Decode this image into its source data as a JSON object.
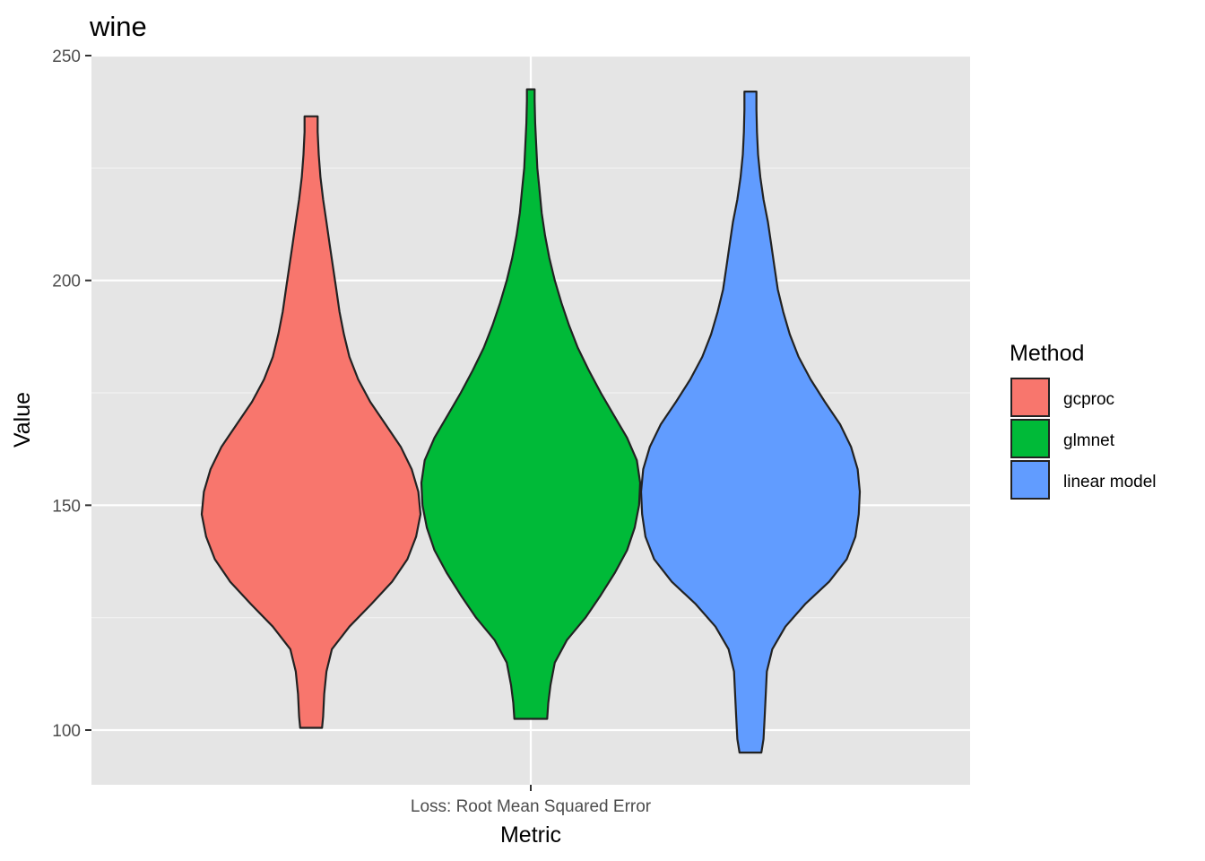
{
  "chart_data": {
    "type": "violin",
    "title": "wine",
    "xlabel": "Metric",
    "ylabel": "Value",
    "categories": [
      "Loss: Root Mean Squared Error"
    ],
    "ylim": [
      88,
      250
    ],
    "yticks": [
      100,
      150,
      200,
      250
    ],
    "grid": true,
    "legend": {
      "title": "Method",
      "position": "right"
    },
    "series": [
      {
        "name": "gcproc",
        "color": "#F8766D",
        "min": 100.5,
        "max": 236.5,
        "profile": [
          [
            100.5,
            0.1
          ],
          [
            103,
            0.11
          ],
          [
            108,
            0.12
          ],
          [
            113,
            0.14
          ],
          [
            118,
            0.19
          ],
          [
            123,
            0.35
          ],
          [
            128,
            0.55
          ],
          [
            133,
            0.74
          ],
          [
            138,
            0.88
          ],
          [
            143,
            0.96
          ],
          [
            148,
            1.0
          ],
          [
            153,
            0.98
          ],
          [
            158,
            0.92
          ],
          [
            163,
            0.82
          ],
          [
            168,
            0.68
          ],
          [
            173,
            0.54
          ],
          [
            178,
            0.43
          ],
          [
            183,
            0.35
          ],
          [
            188,
            0.3
          ],
          [
            193,
            0.26
          ],
          [
            198,
            0.23
          ],
          [
            203,
            0.2
          ],
          [
            208,
            0.17
          ],
          [
            213,
            0.14
          ],
          [
            218,
            0.11
          ],
          [
            223,
            0.085
          ],
          [
            228,
            0.07
          ],
          [
            233,
            0.06
          ],
          [
            236.5,
            0.06
          ]
        ]
      },
      {
        "name": "glmnet",
        "color": "#00BA38",
        "min": 102.5,
        "max": 242.5,
        "profile": [
          [
            102.5,
            0.15
          ],
          [
            106,
            0.16
          ],
          [
            110,
            0.18
          ],
          [
            115,
            0.22
          ],
          [
            120,
            0.33
          ],
          [
            125,
            0.5
          ],
          [
            130,
            0.64
          ],
          [
            135,
            0.77
          ],
          [
            140,
            0.88
          ],
          [
            145,
            0.95
          ],
          [
            150,
            0.99
          ],
          [
            155,
            1.0
          ],
          [
            160,
            0.97
          ],
          [
            165,
            0.88
          ],
          [
            170,
            0.76
          ],
          [
            175,
            0.64
          ],
          [
            180,
            0.53
          ],
          [
            185,
            0.43
          ],
          [
            190,
            0.35
          ],
          [
            195,
            0.28
          ],
          [
            200,
            0.22
          ],
          [
            205,
            0.17
          ],
          [
            210,
            0.13
          ],
          [
            215,
            0.1
          ],
          [
            220,
            0.08
          ],
          [
            225,
            0.06
          ],
          [
            230,
            0.05
          ],
          [
            235,
            0.04
          ],
          [
            240,
            0.035
          ],
          [
            242.5,
            0.035
          ]
        ]
      },
      {
        "name": "linear model",
        "color": "#619CFF",
        "min": 95,
        "max": 242,
        "profile": [
          [
            95,
            0.1
          ],
          [
            98,
            0.12
          ],
          [
            103,
            0.13
          ],
          [
            108,
            0.14
          ],
          [
            113,
            0.15
          ],
          [
            118,
            0.2
          ],
          [
            123,
            0.32
          ],
          [
            128,
            0.5
          ],
          [
            133,
            0.72
          ],
          [
            138,
            0.88
          ],
          [
            143,
            0.96
          ],
          [
            148,
            0.99
          ],
          [
            153,
            1.0
          ],
          [
            158,
            0.98
          ],
          [
            163,
            0.92
          ],
          [
            168,
            0.82
          ],
          [
            173,
            0.68
          ],
          [
            178,
            0.55
          ],
          [
            183,
            0.44
          ],
          [
            188,
            0.36
          ],
          [
            193,
            0.3
          ],
          [
            198,
            0.25
          ],
          [
            203,
            0.22
          ],
          [
            208,
            0.19
          ],
          [
            213,
            0.16
          ],
          [
            218,
            0.12
          ],
          [
            223,
            0.09
          ],
          [
            228,
            0.07
          ],
          [
            233,
            0.06
          ],
          [
            238,
            0.055
          ],
          [
            242,
            0.055
          ]
        ]
      }
    ]
  }
}
